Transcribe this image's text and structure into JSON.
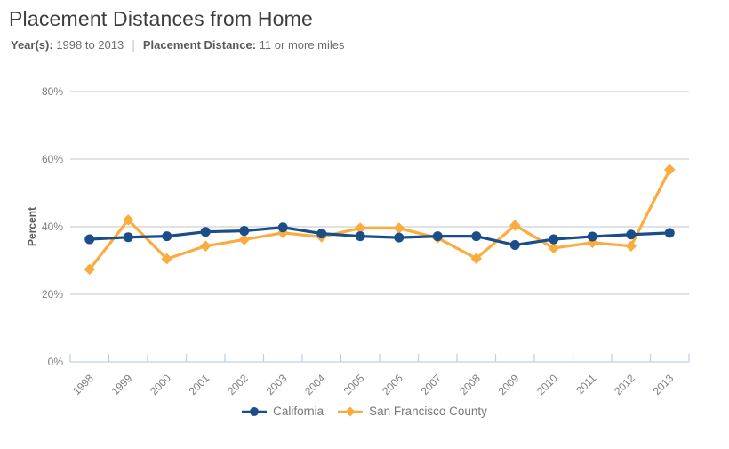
{
  "header": {
    "title": "Placement Distances from Home",
    "years_label": "Year(s):",
    "years_value": "1998 to 2013",
    "separator": "|",
    "distance_label": "Placement Distance:",
    "distance_value": "11 or more miles"
  },
  "chart_data": {
    "type": "line",
    "title": "Placement Distances from Home",
    "xlabel": "",
    "ylabel": "Percent",
    "ylim": [
      0,
      80
    ],
    "grid": true,
    "legend_position": "bottom",
    "yticks": [
      {
        "value": 0,
        "label": "0%"
      },
      {
        "value": 20,
        "label": "20%"
      },
      {
        "value": 40,
        "label": "40%"
      },
      {
        "value": 60,
        "label": "60%"
      },
      {
        "value": 80,
        "label": "80%"
      }
    ],
    "categories": [
      "1998",
      "1999",
      "2000",
      "2001",
      "2002",
      "2003",
      "2004",
      "2005",
      "2006",
      "2007",
      "2008",
      "2009",
      "2010",
      "2011",
      "2012",
      "2013"
    ],
    "series": [
      {
        "name": "San Francisco County",
        "marker": "diamond",
        "color": "#FAAC3E",
        "values": [
          27.4,
          42.0,
          30.5,
          34.3,
          36.2,
          38.2,
          37.0,
          39.6,
          39.6,
          36.7,
          30.6,
          40.4,
          33.7,
          35.3,
          34.3,
          56.9
        ]
      },
      {
        "name": "California",
        "marker": "circle",
        "color": "#1A4E8A",
        "values": [
          36.3,
          36.9,
          37.2,
          38.5,
          38.8,
          39.8,
          38.0,
          37.2,
          36.8,
          37.2,
          37.2,
          34.6,
          36.3,
          37.1,
          37.7,
          38.2
        ]
      }
    ],
    "legend_order": [
      "California",
      "San Francisco County"
    ],
    "colors": {
      "gridline": "#c6c6c6",
      "axis_line": "#bfd1e0",
      "tick_label": "#7b7c7e",
      "axis_title": "#58595b"
    }
  }
}
